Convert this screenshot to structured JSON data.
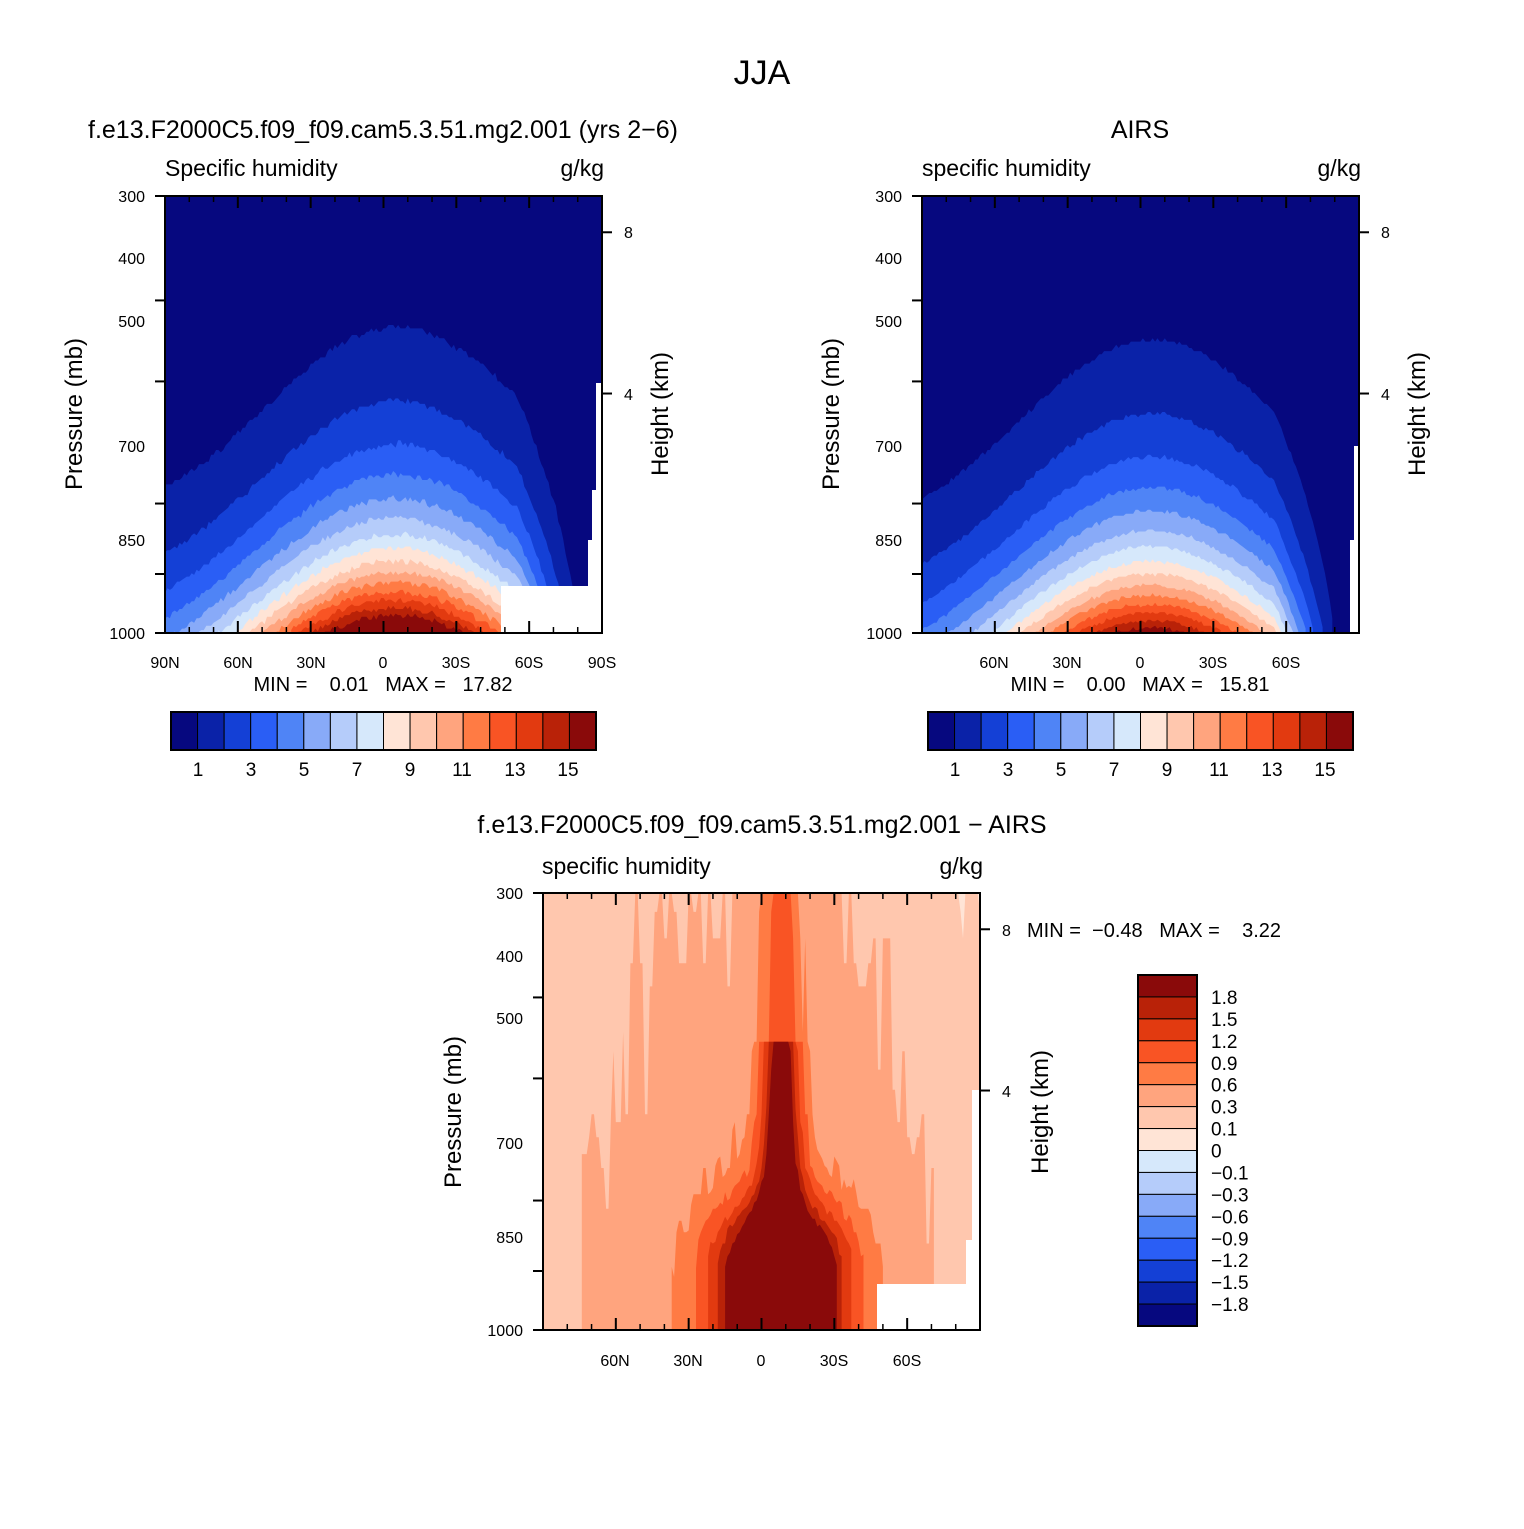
{
  "figure": {
    "title": "JJA",
    "colors": {
      "positive_ramp": [
        "#FFE4D6",
        "#FFC7AE",
        "#FFA47E",
        "#FF7B44",
        "#F95424",
        "#E23A10",
        "#B92208",
        "#8A0A0A"
      ],
      "negative_ramp": [
        "#D6E8FB",
        "#B5CCFA",
        "#88AAF8",
        "#4F84F6",
        "#2A5EF5",
        "#1440D6",
        "#0A22A8",
        "#06087F"
      ]
    }
  },
  "panels": [
    {
      "title": "f.e13.F2000C5.f09_f09.cam5.3.51.mg2.001 (yrs 2−6)",
      "var_label": "Specific humidity",
      "units": "g/kg",
      "ylabel": "Pressure (mb)",
      "ylabel_right": "Height (km)",
      "min_max": "MIN =    0.01   MAX =   17.82",
      "y_ticks": [
        "300",
        "400",
        "500",
        "700",
        "850",
        "1000"
      ],
      "x_ticks": [
        "90N",
        "60N",
        "30N",
        "0",
        "30S",
        "60S",
        "90S"
      ],
      "h_ticks": [
        "8",
        "4"
      ],
      "colorbar": {
        "labels": [
          "1",
          "3",
          "5",
          "7",
          "9",
          "11",
          "13",
          "15"
        ]
      }
    },
    {
      "title": "AIRS",
      "var_label": "specific humidity",
      "units": "g/kg",
      "ylabel": "Pressure (mb)",
      "ylabel_right": "Height (km)",
      "min_max": "MIN =    0.00   MAX =   15.81",
      "y_ticks": [
        "300",
        "400",
        "500",
        "700",
        "850",
        "1000"
      ],
      "x_ticks": [
        "60N",
        "30N",
        "0",
        "30S",
        "60S"
      ],
      "h_ticks": [
        "8",
        "4"
      ],
      "colorbar": {
        "labels": [
          "1",
          "3",
          "5",
          "7",
          "9",
          "11",
          "13",
          "15"
        ]
      }
    },
    {
      "title": "f.e13.F2000C5.f09_f09.cam5.3.51.mg2.001 − AIRS",
      "var_label": "specific humidity",
      "units": "g/kg",
      "ylabel": "Pressure (mb)",
      "ylabel_right": "Height (km)",
      "min_max": "MIN =  −0.48   MAX =    3.22",
      "y_ticks": [
        "300",
        "400",
        "500",
        "700",
        "850",
        "1000"
      ],
      "x_ticks": [
        "60N",
        "30N",
        "0",
        "30S",
        "60S"
      ],
      "h_ticks": [
        "8",
        "4"
      ],
      "colorbar": {
        "labels": [
          "1.8",
          "1.5",
          "1.2",
          "0.9",
          "0.6",
          "0.3",
          "0.1",
          "0",
          "−0.1",
          "−0.3",
          "−0.6",
          "−0.9",
          "−1.2",
          "−1.5",
          "−1.8"
        ]
      }
    }
  ],
  "chart_data": [
    {
      "type": "heatmap",
      "title": "f.e13.F2000C5.f09_f09.cam5.3.51.mg2.001 (yrs 2−6)",
      "variable": "Specific humidity",
      "units": "g/kg",
      "x_axis": "latitude",
      "x_ticks": [
        "90N",
        "60N",
        "30N",
        "0",
        "30S",
        "60S",
        "90S"
      ],
      "y_axis": "pressure",
      "ylabel": "Pressure (mb)",
      "y_ticks": [
        300,
        400,
        500,
        700,
        850,
        1000
      ],
      "ylim": [
        1000,
        300
      ],
      "height_ticks_km": [
        8,
        4
      ],
      "min": 0.01,
      "max": 17.82,
      "levels": [
        1,
        2,
        3,
        4,
        5,
        6,
        7,
        8,
        9,
        10,
        11,
        12,
        13,
        14,
        15
      ],
      "surface_peak_lat": -5,
      "surface_peak_value": 17.82
    },
    {
      "type": "heatmap",
      "title": "AIRS",
      "variable": "specific humidity",
      "units": "g/kg",
      "x_axis": "latitude",
      "x_ticks": [
        "60N",
        "30N",
        "0",
        "30S",
        "60S"
      ],
      "y_axis": "pressure",
      "ylabel": "Pressure (mb)",
      "y_ticks": [
        300,
        400,
        500,
        700,
        850,
        1000
      ],
      "ylim": [
        1000,
        300
      ],
      "height_ticks_km": [
        8,
        4
      ],
      "min": 0.0,
      "max": 15.81,
      "levels": [
        1,
        2,
        3,
        4,
        5,
        6,
        7,
        8,
        9,
        10,
        11,
        12,
        13,
        14,
        15
      ],
      "surface_peak_lat": -5,
      "surface_peak_value": 15.81
    },
    {
      "type": "heatmap",
      "title": "f.e13.F2000C5.f09_f09.cam5.3.51.mg2.001 − AIRS",
      "variable": "specific humidity",
      "units": "g/kg",
      "x_axis": "latitude",
      "x_ticks": [
        "60N",
        "30N",
        "0",
        "30S",
        "60S"
      ],
      "y_axis": "pressure",
      "ylabel": "Pressure (mb)",
      "y_ticks": [
        300,
        400,
        500,
        700,
        850,
        1000
      ],
      "ylim": [
        1000,
        300
      ],
      "height_ticks_km": [
        8,
        4
      ],
      "min": -0.48,
      "max": 3.22,
      "levels": [
        -1.8,
        -1.5,
        -1.2,
        -0.9,
        -0.6,
        -0.3,
        -0.1,
        0,
        0.1,
        0.3,
        0.6,
        0.9,
        1.2,
        1.5,
        1.8
      ]
    }
  ]
}
